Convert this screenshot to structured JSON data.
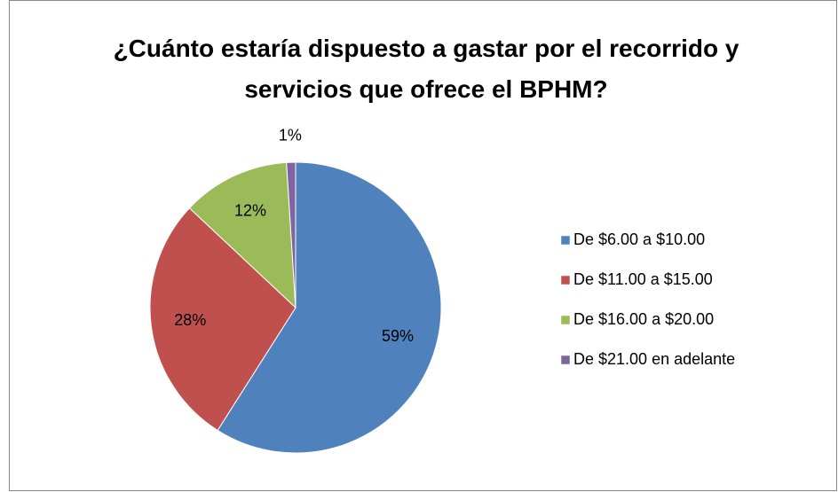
{
  "chart_data": {
    "type": "pie",
    "title": "¿Cuánto estaría dispuesto a gastar por el recorrido y servicios que ofrece el BPHM?",
    "categories": [
      "De $6.00 a $10.00",
      "De $11.00 a $15.00",
      "De $16.00 a $20.00",
      "De $21.00 en adelante"
    ],
    "values": [
      59,
      28,
      12,
      1
    ],
    "value_labels": [
      "59%",
      "28%",
      "12%",
      "1%"
    ],
    "colors": [
      "#4f81bd",
      "#c0504d",
      "#9bbb59",
      "#8064a2"
    ],
    "legend": "right"
  }
}
